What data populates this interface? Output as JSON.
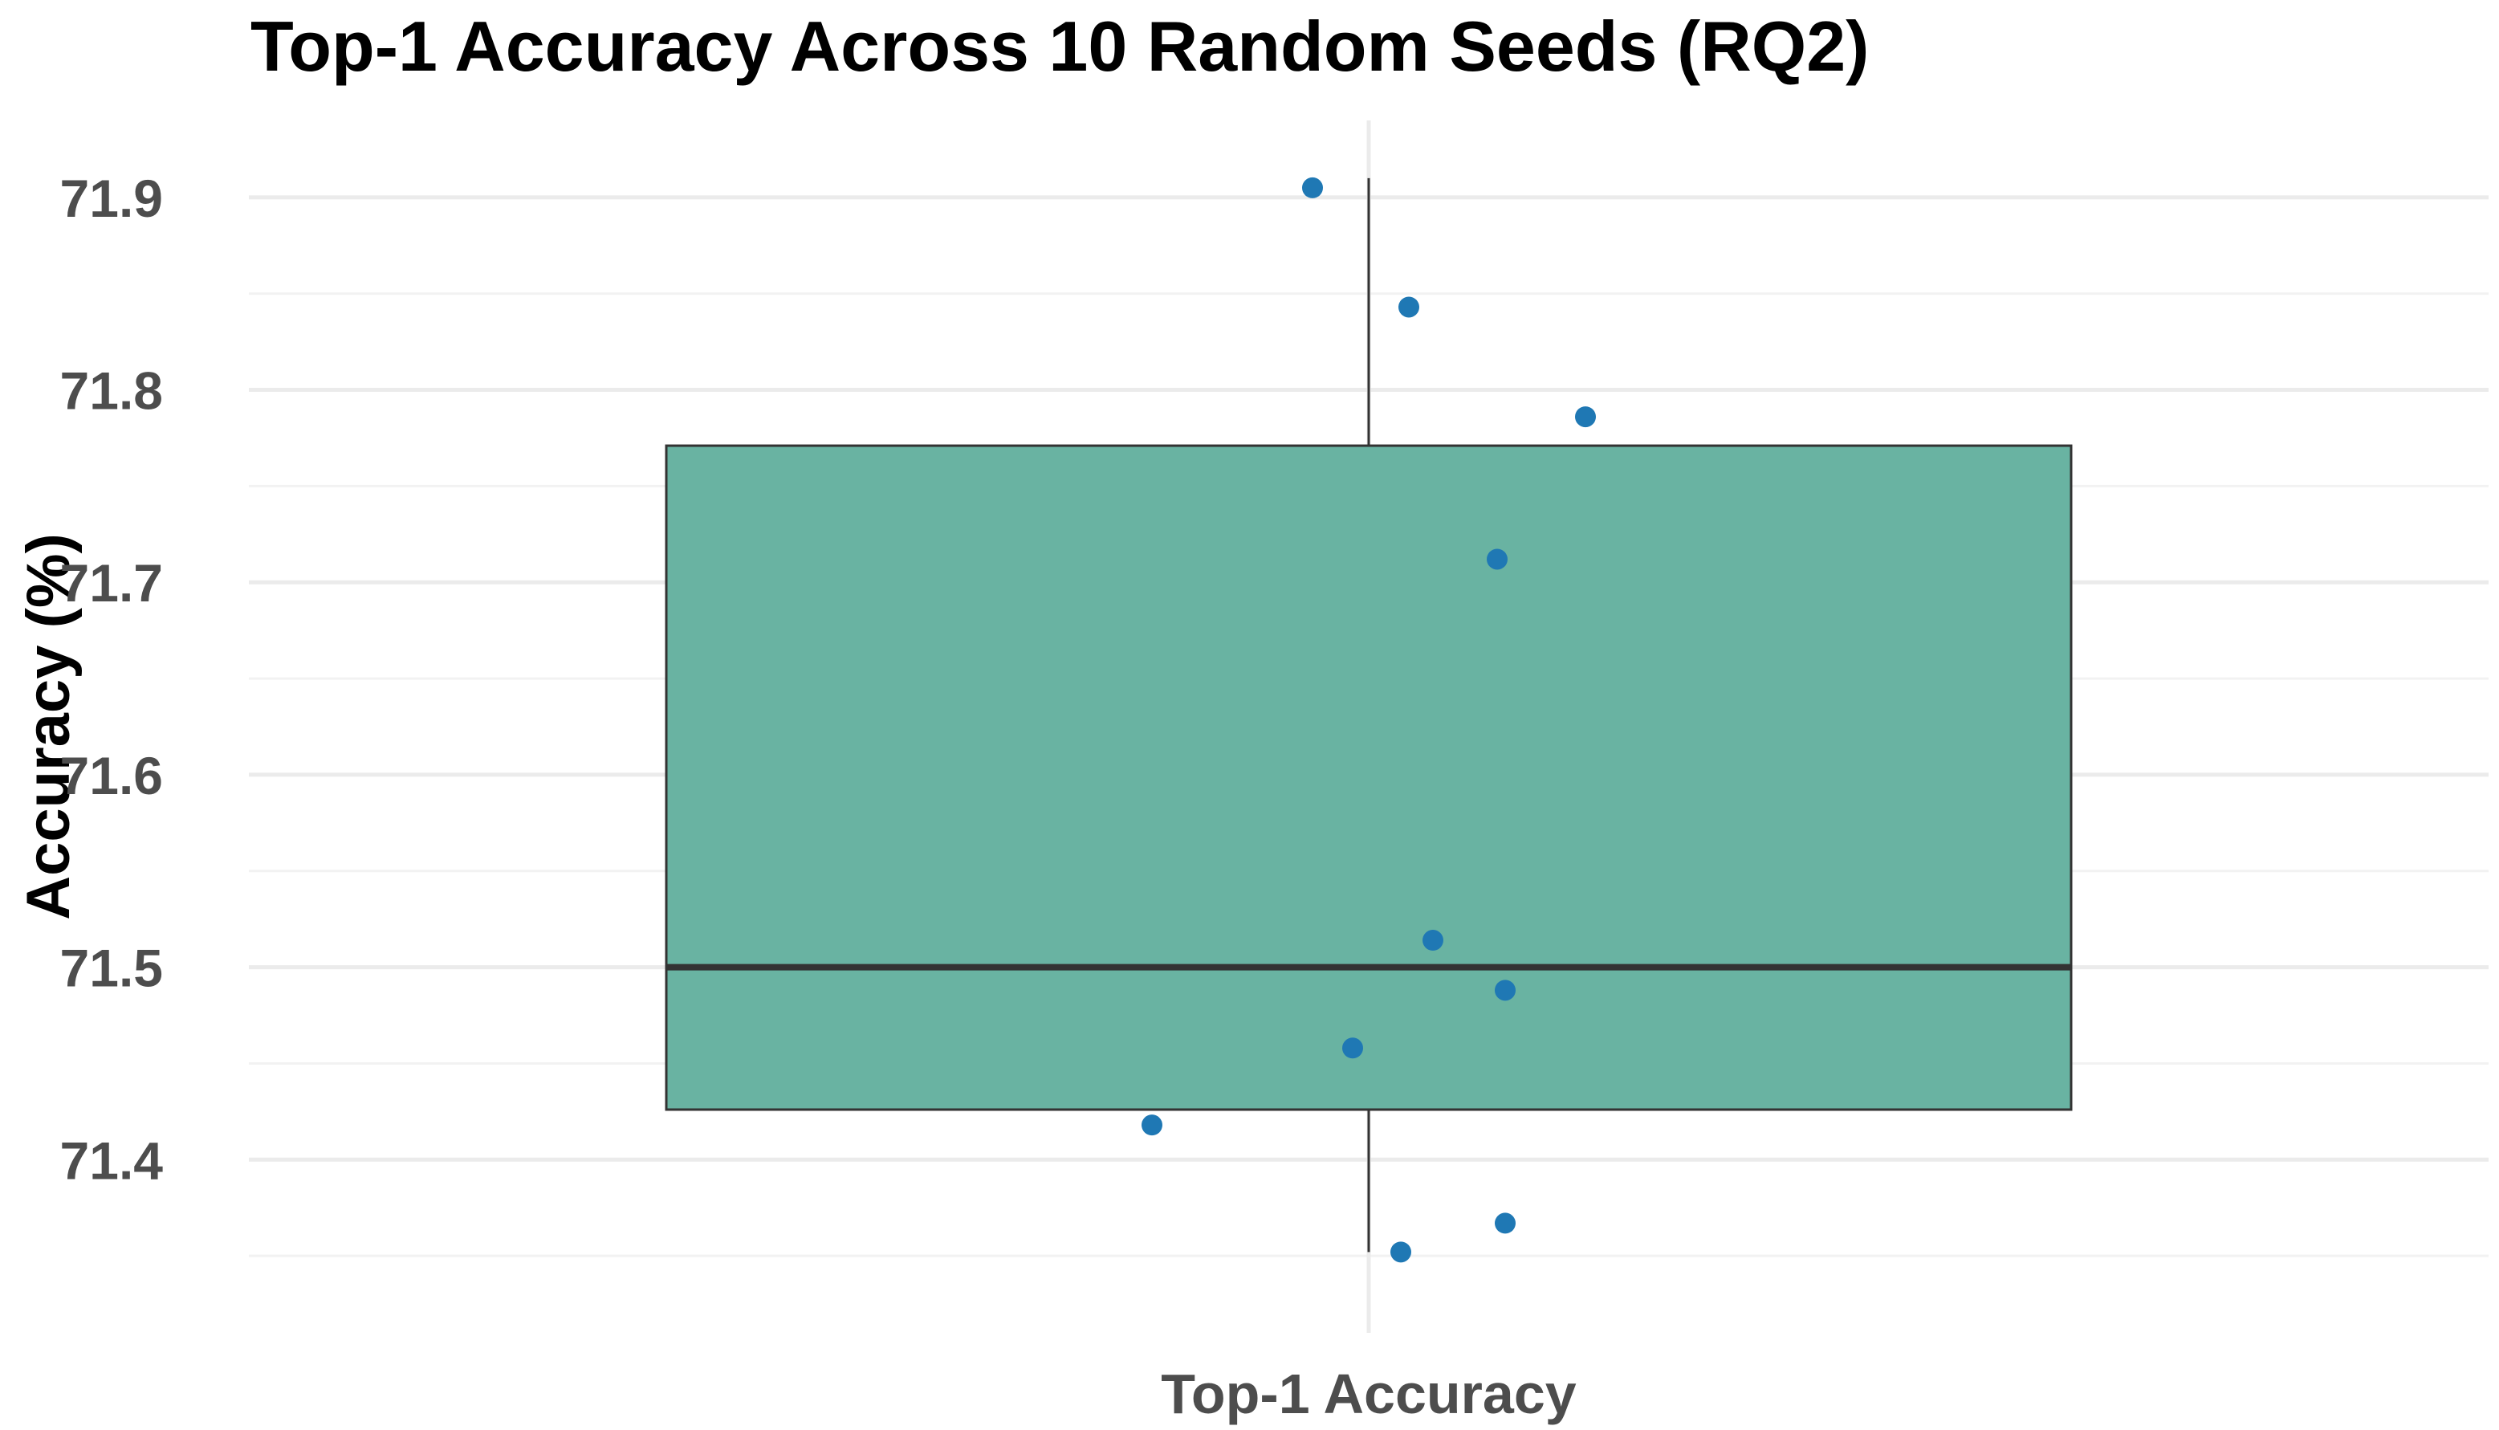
{
  "chart_data": {
    "type": "box",
    "title": "Top-1 Accuracy Across 10 Random Seeds (RQ2)",
    "xlabel": "",
    "ylabel": "Accuracy (%)",
    "categories": [
      "Top-1 Accuracy"
    ],
    "ylim": [
      71.31,
      71.94
    ],
    "yticks": [
      71.4,
      71.5,
      71.6,
      71.7,
      71.8,
      71.9
    ],
    "grid": true,
    "legend": "none",
    "box": {
      "category": "Top-1 Accuracy",
      "min": 71.352,
      "q1": 71.426,
      "median": 71.5,
      "q3": 71.771,
      "max": 71.91,
      "fill": "#69b3a2",
      "outline": "#333333"
    },
    "points": [
      {
        "jitter": -0.07,
        "y": 71.905
      },
      {
        "jitter": 0.05,
        "y": 71.843
      },
      {
        "jitter": 0.27,
        "y": 71.786
      },
      {
        "jitter": 0.16,
        "y": 71.712
      },
      {
        "jitter": 0.08,
        "y": 71.514
      },
      {
        "jitter": 0.17,
        "y": 71.488
      },
      {
        "jitter": -0.02,
        "y": 71.458
      },
      {
        "jitter": -0.27,
        "y": 71.418
      },
      {
        "jitter": 0.17,
        "y": 71.367
      },
      {
        "jitter": 0.04,
        "y": 71.352
      }
    ],
    "point_color": "#1f78b4"
  }
}
